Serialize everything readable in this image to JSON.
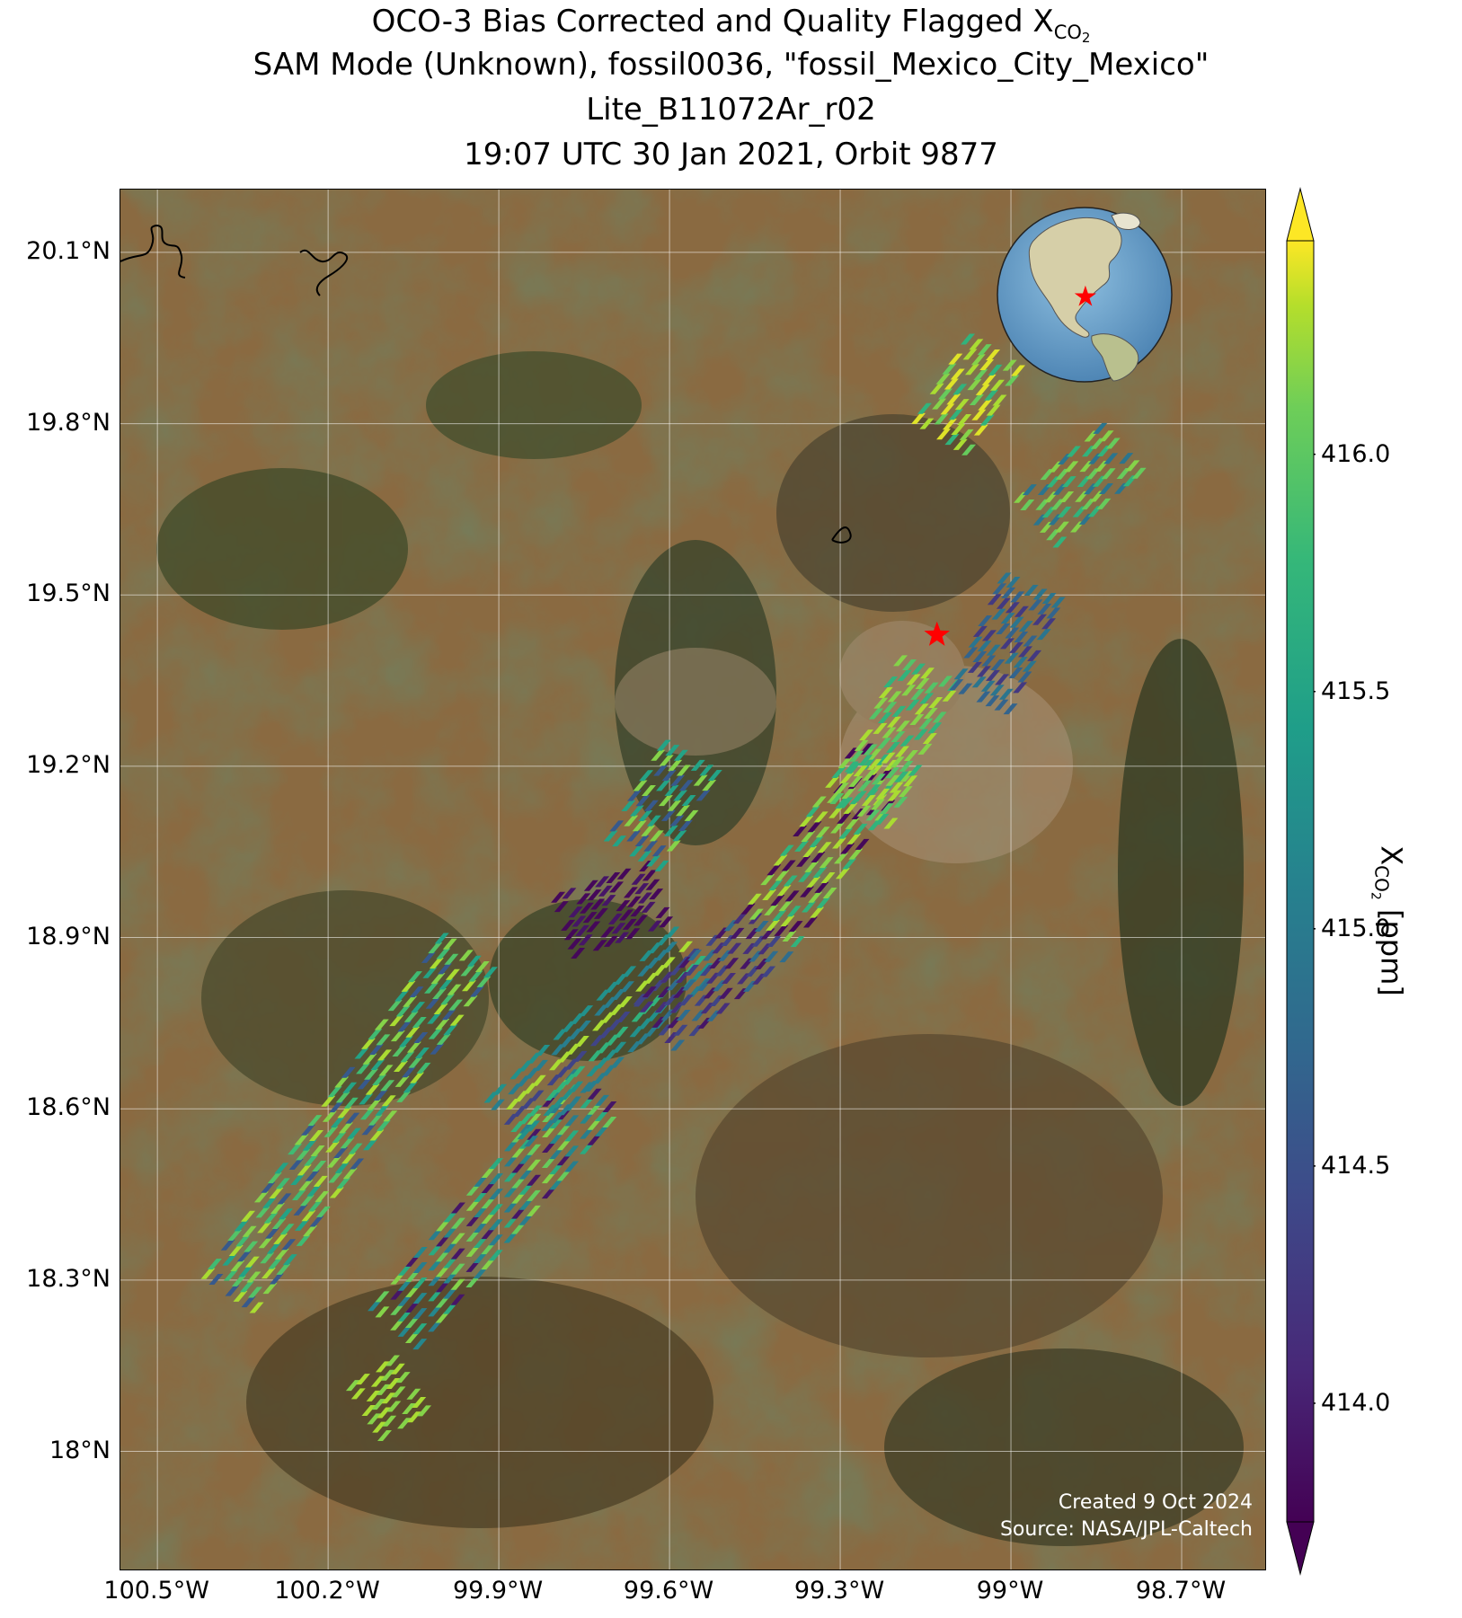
{
  "title": {
    "line1_prefix": "OCO-3 Bias Corrected and Quality Flagged X",
    "line1_sub": "CO",
    "line1_subsub": "2",
    "line2": "SAM Mode (Unknown), fossil0036, \"fossil_Mexico_City_Mexico\"",
    "line3": "Lite_B11072Ar_r02",
    "line4": "19:07 UTC 30 Jan 2021, Orbit 9877"
  },
  "map": {
    "lat_ticks": [
      "20.1°N",
      "19.8°N",
      "19.5°N",
      "19.2°N",
      "18.9°N",
      "18.6°N",
      "18.3°N",
      "18°N"
    ],
    "lon_ticks": [
      "100.5°W",
      "100.2°W",
      "99.9°W",
      "99.6°W",
      "99.3°W",
      "99°W",
      "98.7°W"
    ],
    "target_marker": {
      "name": "Mexico City",
      "lon": -99.13,
      "lat": 19.43,
      "color": "#ff0000"
    },
    "credit_line1": "Created 9 Oct 2024",
    "credit_line2": "Source: NASA/JPL-Caltech",
    "inset_globe": {
      "marker_color": "#ff0000"
    }
  },
  "colorbar": {
    "label_prefix": "X",
    "label_sub": "CO",
    "label_subsub": "2",
    "label_suffix": " [ppm]",
    "ticks": [
      "416.0",
      "415.5",
      "415.0",
      "414.5",
      "414.0"
    ],
    "tick_values": [
      416.0,
      415.5,
      415.0,
      414.5,
      414.0
    ],
    "range": [
      413.75,
      416.45
    ],
    "colormap": "viridis",
    "extend": "both"
  },
  "chart_data": {
    "type": "heatmap",
    "xlabel": "",
    "ylabel": "",
    "value_units": "ppm",
    "swaths": [
      {
        "start": [
          -100.37,
          18.28
        ],
        "end": [
          -99.95,
          18.88
        ],
        "value_pattern": [
          415.6,
          416.1,
          414.9,
          415.4,
          414.2,
          415.8,
          413.9,
          414.6,
          415.2,
          416.0,
          414.1,
          415.7
        ]
      },
      {
        "start": [
          -100.08,
          18.22
        ],
        "end": [
          -99.72,
          18.64
        ],
        "value_pattern": [
          414.3,
          415.1,
          416.1,
          414.0,
          414.8,
          415.5,
          414.5,
          416.0,
          413.9,
          415.0,
          414.4,
          415.9
        ]
      },
      {
        "start": [
          -99.88,
          18.58
        ],
        "end": [
          -99.55,
          18.88
        ],
        "value_pattern": [
          414.6,
          415.2,
          413.9,
          416.1,
          414.9,
          415.6,
          414.1,
          415.0,
          416.0,
          414.4
        ]
      },
      {
        "start": [
          -99.62,
          18.75
        ],
        "end": [
          -99.41,
          18.92
        ],
        "value_pattern": [
          415.0,
          414.4,
          415.6,
          414.0,
          416.1,
          414.8,
          415.3,
          414.2
        ]
      },
      {
        "start": [
          -99.42,
          18.92
        ],
        "end": [
          -99.22,
          19.22
        ],
        "value_pattern": [
          414.0,
          413.9,
          414.3,
          416.1,
          414.1,
          415.6,
          414.0,
          416.0
        ]
      },
      {
        "start": [
          -99.78,
          18.92
        ],
        "end": [
          -99.61,
          18.98
        ],
        "value_pattern": [
          414.0,
          413.9,
          414.1,
          413.9,
          414.2,
          414.0
        ]
      },
      {
        "start": [
          -99.66,
          19.05
        ],
        "end": [
          -99.56,
          19.22
        ],
        "value_pattern": [
          414.8,
          415.4,
          414.3,
          416.0,
          415.2,
          414.6
        ]
      },
      {
        "start": [
          -99.26,
          19.12
        ],
        "end": [
          -99.14,
          19.38
        ],
        "value_pattern": [
          416.1,
          415.8,
          414.4,
          416.0,
          415.3,
          416.1,
          414.9,
          415.6
        ]
      },
      {
        "start": [
          -99.05,
          19.32
        ],
        "end": [
          -98.96,
          19.52
        ],
        "value_pattern": [
          413.9,
          414.7,
          415.1,
          414.3,
          416.1,
          414.9
        ]
      },
      {
        "start": [
          -99.12,
          19.78
        ],
        "end": [
          -99.02,
          19.94
        ],
        "value_pattern": [
          416.1,
          416.2,
          415.9,
          416.1,
          415.6,
          416.2,
          416.0
        ]
      },
      {
        "start": [
          -98.95,
          19.63
        ],
        "end": [
          -98.8,
          19.76
        ],
        "value_pattern": [
          415.8,
          416.0,
          415.4,
          414.9,
          416.1,
          415.6,
          414.2,
          415.9
        ]
      },
      {
        "start": [
          -100.13,
          18.07
        ],
        "end": [
          -100.05,
          18.12
        ],
        "value_pattern": [
          416.1,
          416.0,
          415.3,
          416.1
        ]
      }
    ]
  }
}
